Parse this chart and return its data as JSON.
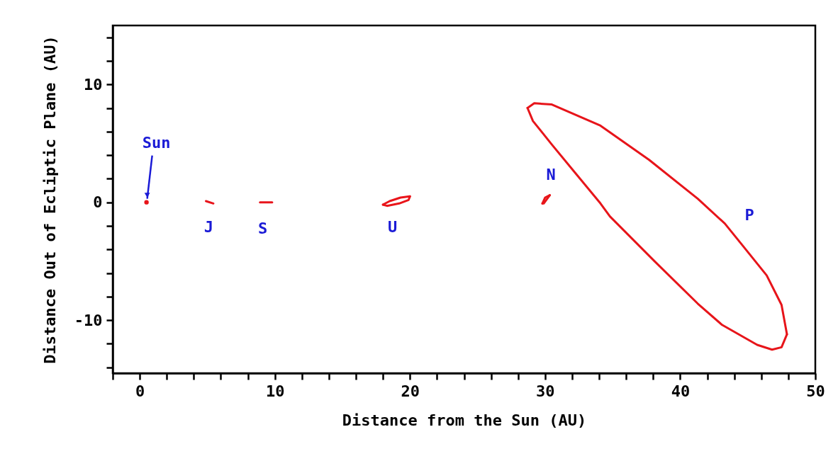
{
  "chart_data": {
    "type": "line",
    "xlabel": "Distance from the Sun (AU)",
    "ylabel": "Distance Out of Ecliptic Plane (AU)",
    "xlim": [
      -2,
      50
    ],
    "xticks": [
      {
        "value": -2,
        "label": null
      },
      0,
      {
        "value": 2,
        "label": null
      },
      {
        "value": 4,
        "label": null
      },
      {
        "value": 6,
        "label": null
      },
      {
        "value": 8,
        "label": null
      },
      10,
      {
        "value": 12,
        "label": null
      },
      {
        "value": 14,
        "label": null
      },
      {
        "value": 16,
        "label": null
      },
      {
        "value": 18,
        "label": null
      },
      20,
      {
        "value": 22,
        "label": null
      },
      {
        "value": 24,
        "label": null
      },
      {
        "value": 26,
        "label": null
      },
      {
        "value": 28,
        "label": null
      },
      30,
      {
        "value": 32,
        "label": null
      },
      {
        "value": 34,
        "label": null
      },
      {
        "value": 36,
        "label": null
      },
      {
        "value": 38,
        "label": null
      },
      40,
      {
        "value": 42,
        "label": null
      },
      {
        "value": 44,
        "label": null
      },
      {
        "value": 46,
        "label": null
      },
      {
        "value": 48,
        "label": null
      },
      50
    ],
    "ylim": [
      -14.5,
      15
    ],
    "yticks": [
      {
        "value": -14,
        "label": null
      },
      {
        "value": -12,
        "label": null
      },
      -10,
      {
        "value": -8,
        "label": null
      },
      {
        "value": -6,
        "label": null
      },
      {
        "value": -4,
        "label": null
      },
      {
        "value": -2,
        "label": null
      },
      0,
      {
        "value": 2,
        "label": null
      },
      {
        "value": 4,
        "label": null
      },
      {
        "value": 6,
        "label": null
      },
      {
        "value": 8,
        "label": null
      },
      10,
      {
        "value": 12,
        "label": null
      },
      {
        "value": 14,
        "label": null
      }
    ],
    "series": [
      {
        "type": "scatter",
        "color": "#e8141a",
        "x": [
          0.5
        ],
        "values": [
          0
        ]
      },
      {
        "color": "#e8141b",
        "x": [
          4.9,
          5.45
        ],
        "values": [
          0.1,
          -0.1
        ]
      },
      {
        "color": "#e8141c",
        "x": [
          8.9,
          9.8
        ],
        "values": [
          0,
          0
        ]
      },
      {
        "color": "#e9141a",
        "x": [
          18.0,
          18.5,
          19.3,
          20.0
        ],
        "values": [
          -0.2,
          0.1,
          0.4,
          0.5
        ]
      },
      {
        "color": "#e9151a",
        "x": [
          18.0,
          18.3,
          19.2,
          19.9,
          20.0
        ],
        "values": [
          -0.2,
          -0.3,
          -0.1,
          0.2,
          0.5
        ]
      },
      {
        "color": "#e8151a",
        "x": [
          29.8,
          30.0,
          30.35
        ],
        "values": [
          -0.1,
          0.4,
          0.6
        ]
      },
      {
        "color": "#e8161a",
        "x": [
          29.8,
          29.9,
          30.35
        ],
        "values": [
          -0.1,
          -0.1,
          0.6
        ]
      },
      {
        "color": "#e7141a",
        "x": [
          28.7,
          29.2,
          30.5,
          34.1,
          37.7,
          41.3,
          43.3,
          44.5,
          46.4,
          47.5,
          47.9
        ],
        "values": [
          8.0,
          8.4,
          8.3,
          6.5,
          3.6,
          0.3,
          -1.8,
          -3.5,
          -6.2,
          -8.7,
          -11.2
        ]
      },
      {
        "color": "#e7151a",
        "x": [
          28.7,
          29.1,
          30.5,
          32.3,
          34.1,
          34.8,
          38.1,
          41.3,
          43.1,
          45.7,
          46.8,
          47.5,
          47.9
        ],
        "values": [
          8.0,
          6.9,
          4.9,
          2.4,
          -0.1,
          -1.2,
          -5.0,
          -8.6,
          -10.4,
          -12.1,
          -12.5,
          -12.3,
          -11.2
        ]
      }
    ],
    "annotations": [
      {
        "text": "Sun",
        "x": 0.5,
        "y": 0
      },
      {
        "text": "J",
        "x": 4.9,
        "y": 0.1
      },
      {
        "text": "S",
        "x": 8.9,
        "y": 0
      },
      {
        "text": "U",
        "x": 18.5,
        "y": 0.1
      },
      {
        "text": "N",
        "x": 29.8,
        "y": -0.1
      },
      {
        "text": "P",
        "x": 44.5,
        "y": -3.5
      }
    ],
    "marker": "none",
    "grid": false
  }
}
